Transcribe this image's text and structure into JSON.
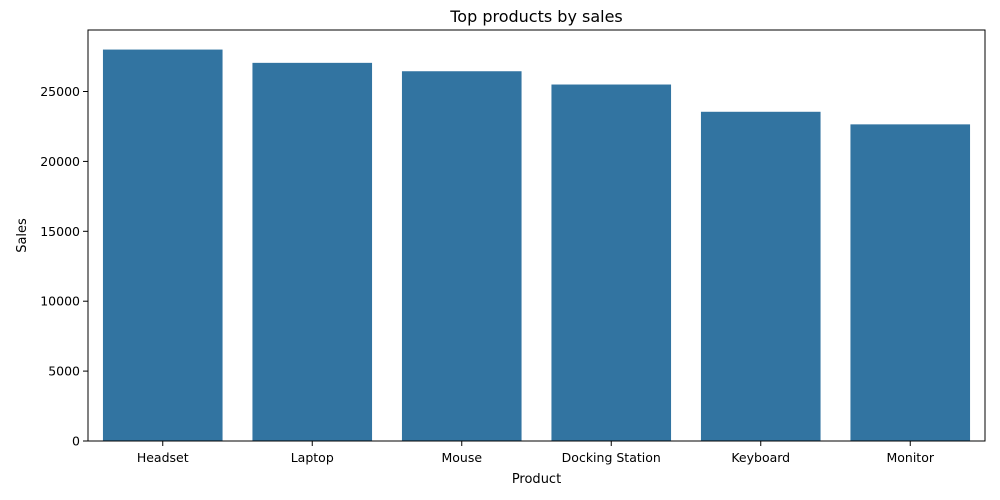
{
  "chart_data": {
    "type": "bar",
    "title": "Top products by sales",
    "xlabel": "Product",
    "ylabel": "Sales",
    "categories": [
      "Headset",
      "Laptop",
      "Mouse",
      "Docking Station",
      "Keyboard",
      "Monitor"
    ],
    "values": [
      28000,
      27050,
      26450,
      25500,
      23550,
      22650
    ],
    "ylim": [
      0,
      29400
    ],
    "yticks": [
      0,
      5000,
      10000,
      15000,
      20000,
      25000
    ],
    "grid": false,
    "legend": "none",
    "bar_color": "#3274a1"
  }
}
